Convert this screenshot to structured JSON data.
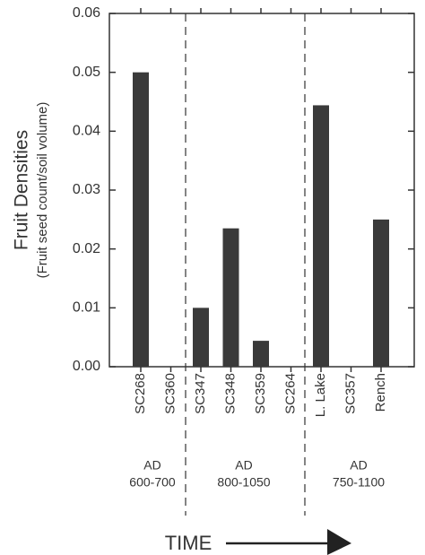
{
  "chart_data": {
    "type": "bar",
    "y_label": "Fruit Densities",
    "y_sublabel": "(Fruit seed count/soil volume)",
    "x_label": "TIME",
    "categories": [
      "SC268",
      "SC360",
      "SC347",
      "SC348",
      "SC359",
      "SC264",
      "L. Lake",
      "SC357",
      "Rench"
    ],
    "values": [
      0.05,
      0,
      0.01,
      0.0235,
      0.0044,
      0,
      0.0444,
      0,
      0.025
    ],
    "color": "#3a3a3a",
    "ylim": [
      0,
      0.06
    ],
    "yticks": [
      {
        "value": 0,
        "label": "0.00"
      },
      0.01,
      0.02,
      0.03,
      0.04,
      0.05,
      0.06
    ],
    "periods": [
      {
        "lines": [
          "AD",
          "600-700"
        ]
      },
      {
        "lines": [
          "AD",
          "800-1050"
        ]
      },
      {
        "lines": [
          "AD",
          "750-1100"
        ]
      }
    ]
  }
}
